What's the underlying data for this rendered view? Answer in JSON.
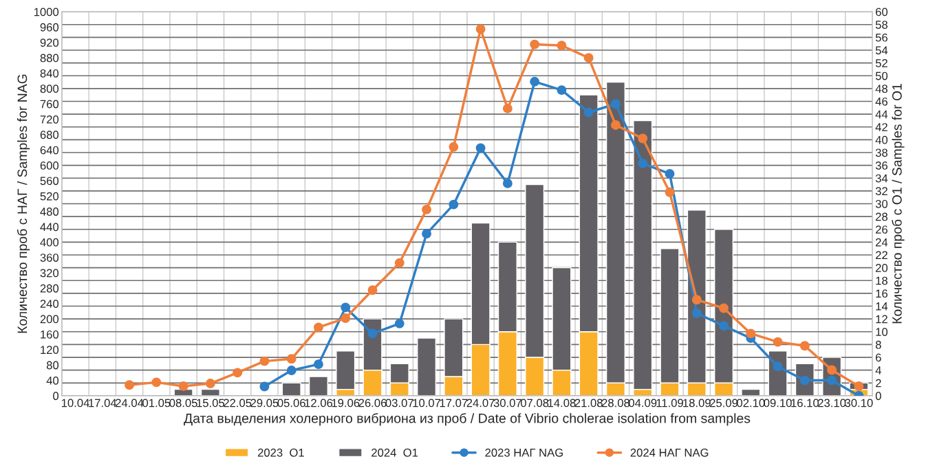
{
  "chart_data": {
    "type": "bar",
    "xlabel": "Дата выделения холерного вибриона из проб / Date of Vibrio cholerae isolation from samples",
    "ylabel": "Количество проб с НАГ / Samples for NAG",
    "y2label": "Количество проб с О1 / Samples for O1",
    "categories": [
      "10.04",
      "17.04",
      "24.04",
      "01.05",
      "08.05",
      "15.05",
      "22.05",
      "29.05",
      "05.06",
      "12.06",
      "19.06",
      "26.06",
      "03.07",
      "10.07",
      "17.07",
      "24.07",
      "30.07",
      "07.08",
      "14.08",
      "21.08",
      "28.08",
      "04.09",
      "11.09",
      "18.09",
      "25.09",
      "02.10",
      "09.10",
      "16.10",
      "23.10",
      "30.10"
    ],
    "series": [
      {
        "name": "2023  O1",
        "axis": "y2",
        "color": "#fbb02a",
        "values": [
          null,
          null,
          null,
          null,
          null,
          null,
          null,
          null,
          null,
          null,
          1,
          4,
          2,
          null,
          3,
          8,
          10,
          6,
          4,
          10,
          2,
          1,
          2,
          2,
          2,
          null,
          null,
          null,
          null,
          1
        ]
      },
      {
        "name": "2024  O1",
        "axis": "y2",
        "color": "#626065",
        "values": [
          null,
          null,
          null,
          null,
          1,
          1,
          null,
          null,
          2,
          3,
          6,
          8,
          3,
          9,
          9,
          19,
          14,
          27,
          16,
          37,
          47,
          42,
          21,
          27,
          24,
          1,
          7,
          5,
          6,
          1
        ]
      },
      {
        "name": "2023 НАГ NAG",
        "type": "line",
        "color": "#2f7fc6",
        "values": [
          null,
          null,
          null,
          null,
          null,
          null,
          null,
          24,
          66,
          82,
          230,
          162,
          188,
          422,
          498,
          645,
          553,
          818,
          796,
          738,
          760,
          605,
          578,
          215,
          182,
          150,
          76,
          40,
          40,
          0
        ]
      },
      {
        "name": "2024 НАГ NAG",
        "type": "line",
        "color": "#f07f3c",
        "values": [
          null,
          null,
          28,
          35,
          25,
          32,
          60,
          90,
          96,
          178,
          202,
          275,
          346,
          485,
          648,
          955,
          748,
          915,
          912,
          880,
          705,
          670,
          530,
          250,
          228,
          162,
          140,
          130,
          67,
          25
        ]
      }
    ],
    "ylim": [
      0,
      1000
    ],
    "yticks": [
      0,
      40,
      80,
      120,
      160,
      200,
      240,
      280,
      320,
      360,
      400,
      440,
      480,
      520,
      560,
      600,
      640,
      680,
      720,
      760,
      800,
      840,
      880,
      920,
      960,
      1000
    ],
    "y2lim": [
      0,
      60
    ],
    "y2ticks": [
      0,
      2,
      4,
      6,
      8,
      10,
      12,
      14,
      16,
      18,
      20,
      22,
      24,
      26,
      28,
      30,
      32,
      34,
      36,
      38,
      40,
      42,
      44,
      46,
      48,
      50,
      52,
      54,
      56,
      58,
      60
    ],
    "stacked": true,
    "marker": "circle",
    "line_style": "solid",
    "grid": true,
    "legend": "bottom"
  }
}
